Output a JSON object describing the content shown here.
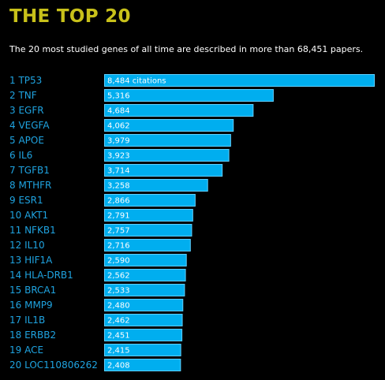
{
  "header": {
    "title": "THE TOP 20",
    "subtitle": "The 20 most studied genes of all time are described in more than 68,451 papers."
  },
  "colors": {
    "background": "#000000",
    "title": "#c8c11a",
    "bar": "#00aeef",
    "bar_border": "#5fd0ff",
    "gene_label": "#1fa3e0",
    "value_label": "#ffffff"
  },
  "chart_data": {
    "type": "bar",
    "orientation": "horizontal",
    "categories": [
      "1 TP53",
      "2 TNF",
      "3 EGFR",
      "4 VEGFA",
      "5 APOE",
      "6 IL6",
      "7 TGFB1",
      "8 MTHFR",
      "9 ESR1",
      "10 AKT1",
      "11 NFKB1",
      "12 IL10",
      "13 HIF1A",
      "14 HLA-DRB1",
      "15 BRCA1",
      "16 MMP9",
      "17 IL1B",
      "18 ERBB2",
      "19 ACE",
      "20 LOC110806262"
    ],
    "values": [
      8484,
      5316,
      4684,
      4062,
      3979,
      3923,
      3714,
      3258,
      2866,
      2791,
      2757,
      2716,
      2590,
      2562,
      2533,
      2480,
      2462,
      2451,
      2415,
      2408
    ],
    "value_labels": [
      "8,484 citations",
      "5,316",
      "4,684",
      "4,062",
      "3,979",
      "3,923",
      "3,714",
      "3,258",
      "2,866",
      "2,791",
      "2,757",
      "2,716",
      "2,590",
      "2,562",
      "2,533",
      "2,480",
      "2,462",
      "2,451",
      "2,415",
      "2,408"
    ],
    "xlim": [
      0,
      8484
    ],
    "grid": false,
    "legend": "none"
  }
}
